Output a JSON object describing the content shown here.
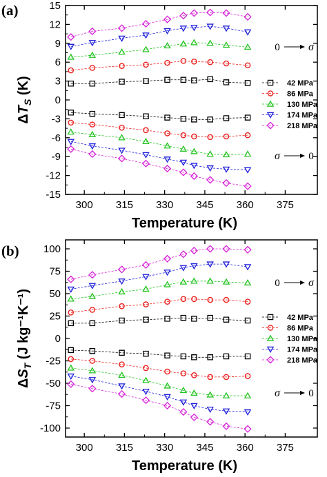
{
  "chart_data": [
    {
      "type": "line",
      "panel_label": "(a)",
      "xlabel": "Temperature (K)",
      "ylabel_base": "Δ",
      "ylabel_var": "T",
      "ylabel_sub": "S",
      "ylabel_unit": " (K)",
      "xlim": [
        293,
        387
      ],
      "ylim": [
        -15,
        15
      ],
      "xticks": [
        300,
        315,
        330,
        345,
        360,
        375
      ],
      "yticks": [
        -15,
        -12,
        -9,
        -6,
        -3,
        0,
        3,
        6,
        9,
        12,
        15
      ],
      "x": [
        295,
        303,
        314,
        323,
        331,
        337,
        341,
        347,
        353,
        361
      ],
      "legend": [
        "42 MPa",
        "86 MPa",
        "130 MPa",
        "174 MPa",
        "218 MPa"
      ],
      "annotation_top": {
        "left": "0",
        "right": "σ"
      },
      "annotation_bottom": {
        "left": "σ",
        "right": "0"
      },
      "series": [
        {
          "name": "42 MPa",
          "marker": "square",
          "color": "#000000",
          "values": [
            2.6,
            2.6,
            2.9,
            3.0,
            3.2,
            3.2,
            3.1,
            3.3,
            2.8,
            2.7
          ]
        },
        {
          "name": "86 MPa",
          "marker": "circle",
          "color": "#e8221f",
          "values": [
            4.7,
            5.1,
            5.4,
            5.6,
            5.9,
            6.2,
            6.1,
            6.0,
            5.8,
            5.5
          ]
        },
        {
          "name": "130 MPa",
          "marker": "triangle-up",
          "color": "#22c31f",
          "values": [
            6.8,
            7.1,
            7.6,
            8.0,
            8.6,
            8.9,
            9.1,
            9.0,
            8.7,
            8.4
          ]
        },
        {
          "name": "174 MPa",
          "marker": "triangle-down",
          "color": "#1f1fd9",
          "values": [
            8.5,
            9.1,
            9.8,
            10.3,
            11.0,
            11.4,
            11.5,
            11.7,
            11.4,
            10.8
          ]
        },
        {
          "name": "218 MPa",
          "marker": "diamond",
          "color": "#d61fd6",
          "values": [
            10.0,
            10.9,
            11.4,
            12.1,
            12.8,
            13.4,
            13.8,
            13.9,
            13.8,
            13.2
          ]
        },
        {
          "name": "42 MPa",
          "marker": "square",
          "color": "#000000",
          "values": [
            -2.0,
            -2.2,
            -2.4,
            -2.6,
            -2.8,
            -3.0,
            -3.1,
            -3.1,
            -2.9,
            -2.8
          ]
        },
        {
          "name": "86 MPa",
          "marker": "circle",
          "color": "#e8221f",
          "values": [
            -3.6,
            -3.9,
            -4.4,
            -4.8,
            -5.3,
            -5.6,
            -5.8,
            -5.9,
            -5.8,
            -5.6
          ]
        },
        {
          "name": "130 MPa",
          "marker": "triangle-up",
          "color": "#22c31f",
          "values": [
            -5.1,
            -5.5,
            -6.0,
            -6.6,
            -7.3,
            -7.8,
            -8.2,
            -8.6,
            -8.7,
            -8.6
          ]
        },
        {
          "name": "174 MPa",
          "marker": "triangle-down",
          "color": "#1f1fd9",
          "values": [
            -6.6,
            -7.3,
            -8.0,
            -8.7,
            -9.4,
            -9.9,
            -10.4,
            -10.8,
            -11.0,
            -11.1
          ]
        },
        {
          "name": "218 MPa",
          "marker": "diamond",
          "color": "#d61fd6",
          "values": [
            -7.8,
            -8.6,
            -9.3,
            -10.1,
            -10.9,
            -11.5,
            -12.1,
            -12.7,
            -13.2,
            -13.7
          ]
        }
      ]
    },
    {
      "type": "line",
      "panel_label": "(b)",
      "xlabel": "Temperature (K)",
      "ylabel_base": "Δ",
      "ylabel_var": "S",
      "ylabel_sub": "T",
      "ylabel_unit": " (J kg⁻¹K⁻¹)",
      "xlim": [
        293,
        387
      ],
      "ylim": [
        -110,
        110
      ],
      "xticks": [
        300,
        315,
        330,
        345,
        360,
        375
      ],
      "yticks": [
        -100,
        -75,
        -50,
        -25,
        0,
        25,
        50,
        75,
        100
      ],
      "x": [
        295,
        303,
        314,
        323,
        331,
        337,
        341,
        347,
        353,
        361
      ],
      "legend": [
        "42 MPa",
        "86 MPa",
        "130 MPa",
        "174 MPa",
        "218 MPa"
      ],
      "annotation_top": {
        "left": "0",
        "right": "σ"
      },
      "annotation_bottom": {
        "left": "σ",
        "right": "0"
      },
      "series": [
        {
          "name": "42 MPa",
          "marker": "square",
          "color": "#000000",
          "values": [
            17,
            17,
            20,
            21,
            22,
            23,
            22,
            23,
            21,
            20
          ]
        },
        {
          "name": "86 MPa",
          "marker": "circle",
          "color": "#e8221f",
          "values": [
            29,
            32,
            36,
            38,
            41,
            44,
            44,
            43,
            43,
            41
          ]
        },
        {
          "name": "130 MPa",
          "marker": "triangle-up",
          "color": "#22c31f",
          "values": [
            44,
            47,
            52,
            55,
            60,
            63,
            64,
            64,
            63,
            62
          ]
        },
        {
          "name": "174 MPa",
          "marker": "triangle-down",
          "color": "#1f1fd9",
          "values": [
            55,
            59,
            64,
            69,
            74,
            79,
            81,
            83,
            83,
            80
          ]
        },
        {
          "name": "218 MPa",
          "marker": "diamond",
          "color": "#d61fd6",
          "values": [
            66,
            71,
            77,
            82,
            89,
            94,
            98,
            100,
            100,
            99
          ]
        },
        {
          "name": "42 MPa",
          "marker": "square",
          "color": "#000000",
          "values": [
            -13,
            -14,
            -16,
            -17,
            -19,
            -20,
            -21,
            -21,
            -20,
            -20
          ]
        },
        {
          "name": "86 MPa",
          "marker": "circle",
          "color": "#e8221f",
          "values": [
            -23,
            -25,
            -29,
            -33,
            -37,
            -39,
            -41,
            -43,
            -43,
            -42
          ]
        },
        {
          "name": "130 MPa",
          "marker": "triangle-up",
          "color": "#22c31f",
          "values": [
            -33,
            -36,
            -41,
            -47,
            -53,
            -58,
            -61,
            -63,
            -64,
            -64
          ]
        },
        {
          "name": "174 MPa",
          "marker": "triangle-down",
          "color": "#1f1fd9",
          "values": [
            -42,
            -46,
            -53,
            -59,
            -65,
            -71,
            -75,
            -79,
            -81,
            -82
          ]
        },
        {
          "name": "218 MPa",
          "marker": "diamond",
          "color": "#d61fd6",
          "values": [
            -51,
            -56,
            -62,
            -69,
            -75,
            -82,
            -88,
            -93,
            -98,
            -101
          ]
        }
      ]
    }
  ]
}
